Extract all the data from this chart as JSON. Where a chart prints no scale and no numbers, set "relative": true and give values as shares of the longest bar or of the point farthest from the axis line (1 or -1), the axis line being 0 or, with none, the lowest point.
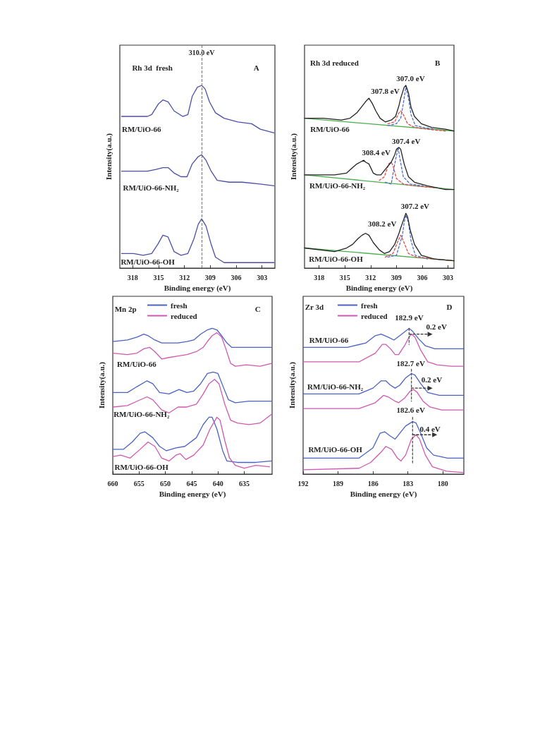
{
  "chart_data": [
    {
      "type": "line",
      "relative": true,
      "tick_labels": "x",
      "xlabel": "Binding energy (eV)",
      "ylabel": "Intensity(a.u.)",
      "xlim": [
        319.5,
        301.5
      ],
      "xticks": [
        318,
        315,
        312,
        309,
        306,
        303
      ],
      "series": [
        {
          "color": "#4b4fa6",
          "x": [
            319.3,
            317.6,
            316.3,
            315.8,
            315.0,
            314.5,
            313.9,
            313.2,
            312.2,
            311.6,
            311.1,
            310.5,
            310.0,
            309.6,
            309.1,
            308.4,
            307.4,
            305.8,
            304.2,
            303.2,
            301.6
          ],
          "values": [
            0.83,
            0.83,
            0.83,
            0.84,
            0.9,
            0.92,
            0.91,
            0.86,
            0.83,
            0.84,
            0.94,
            0.99,
            1,
            0.98,
            0.91,
            0.85,
            0.82,
            0.8,
            0.79,
            0.76,
            0.74
          ]
        },
        {
          "color": "#4b4fa6",
          "x": [
            319.3,
            316.3,
            315.3,
            314.5,
            313.9,
            313.2,
            312.4,
            311.7,
            311.1,
            310.4,
            310.0,
            309.5,
            308.9,
            308.2,
            306.8,
            305.3,
            303.2,
            301.6
          ],
          "values": [
            0.53,
            0.53,
            0.54,
            0.55,
            0.55,
            0.52,
            0.5,
            0.5,
            0.57,
            0.61,
            0.62,
            0.59,
            0.53,
            0.48,
            0.47,
            0.47,
            0.46,
            0.45
          ]
        },
        {
          "color": "#4b4fa6",
          "x": [
            319.3,
            317.9,
            316.8,
            315.8,
            315.1,
            314.5,
            313.9,
            313.2,
            312.4,
            311.6,
            310.9,
            310.4,
            310.0,
            309.5,
            308.9,
            308.4,
            307.4,
            305.3,
            303.2,
            301.6
          ],
          "values": [
            0.08,
            0.08,
            0.07,
            0.08,
            0.13,
            0.18,
            0.17,
            0.09,
            0.07,
            0.08,
            0.16,
            0.24,
            0.27,
            0.23,
            0.13,
            0.06,
            0.03,
            0.03,
            0.03,
            0.03
          ]
        }
      ],
      "ref_lines": [
        {
          "axis": "x",
          "value": 310.0,
          "label": "310.0 eV",
          "color": "#777777",
          "line_style": "dashed"
        }
      ],
      "annotations": [
        "Rh 3d  fresh",
        "A",
        "RM/UiO-66",
        "RM/UiO-66-NH₂",
        "RM/UiO-66-OH"
      ]
    },
    {
      "type": "line",
      "relative": true,
      "tick_labels": "x",
      "xlabel": "Binding energy (eV)",
      "ylabel": "Intensity(a.u.)",
      "xlim": [
        319.7,
        302.3
      ],
      "xticks": [
        318,
        315,
        312,
        309,
        306,
        303
      ],
      "series": [
        {
          "color": "#4caf50",
          "x": [
            319.7,
            302.3
          ],
          "values": [
            0.82,
            0.75
          ]
        },
        {
          "color": "#4a6fd0",
          "line_style": "dashed",
          "x": [
            310.0,
            309.0,
            308.5,
            308.2,
            307.9,
            307.6,
            307.3,
            306.8,
            305.9,
            304.6
          ],
          "values": [
            0.78,
            0.79,
            0.82,
            0.9,
            0.99,
            0.93,
            0.84,
            0.78,
            0.77,
            0.76
          ]
        },
        {
          "color": "#e04848",
          "line_style": "dashed",
          "x": [
            310.0,
            309.2,
            308.7,
            308.5,
            308.2,
            307.7,
            306.9,
            305.4,
            303.3
          ],
          "values": [
            0.79,
            0.8,
            0.85,
            0.86,
            0.84,
            0.79,
            0.77,
            0.76,
            0.75
          ]
        },
        {
          "color": "#222222",
          "x": [
            319.7,
            317.5,
            315.4,
            314.4,
            313.6,
            313.1,
            312.6,
            312.2,
            311.8,
            311.4,
            310.9,
            310.3,
            309.6,
            309.1,
            308.7,
            308.5,
            308.1,
            307.9,
            307.6,
            307.3,
            306.9,
            306.1,
            304.9,
            303.3,
            302.3
          ],
          "values": [
            0.82,
            0.82,
            0.81,
            0.82,
            0.85,
            0.88,
            0.91,
            0.93,
            0.9,
            0.86,
            0.82,
            0.8,
            0.81,
            0.83,
            0.89,
            0.93,
            0.99,
            1,
            0.96,
            0.88,
            0.83,
            0.79,
            0.77,
            0.76,
            0.75
          ]
        },
        {
          "color": "#4caf50",
          "x": [
            319.7,
            302.3
          ],
          "values": [
            0.51,
            0.43
          ]
        },
        {
          "color": "#4a6fd0",
          "line_style": "dashed",
          "x": [
            310.3,
            309.6,
            309.2,
            308.8,
            308.6,
            308.2,
            307.4,
            305.9
          ],
          "values": [
            0.47,
            0.46,
            0.57,
            0.66,
            0.6,
            0.5,
            0.46,
            0.45
          ]
        },
        {
          "color": "#e04848",
          "line_style": "dashed",
          "x": [
            311.0,
            310.4,
            309.9,
            309.6,
            309.4,
            309.0,
            308.2,
            306.9,
            304.6
          ],
          "values": [
            0.48,
            0.5,
            0.57,
            0.58,
            0.56,
            0.49,
            0.46,
            0.45,
            0.44
          ]
        },
        {
          "color": "#222222",
          "x": [
            319.7,
            316.2,
            314.8,
            314.1,
            313.6,
            313.2,
            312.8,
            312.6,
            312.2,
            311.7,
            311.3,
            310.8,
            310.3,
            309.6,
            309.2,
            309.0,
            308.7,
            308.5,
            308.1,
            307.6,
            306.9,
            305.4,
            303.3,
            302.3
          ],
          "values": [
            0.51,
            0.51,
            0.52,
            0.55,
            0.57,
            0.58,
            0.59,
            0.58,
            0.57,
            0.52,
            0.51,
            0.51,
            0.54,
            0.58,
            0.62,
            0.65,
            0.66,
            0.65,
            0.57,
            0.5,
            0.47,
            0.45,
            0.43,
            0.43
          ]
        },
        {
          "color": "#4caf50",
          "x": [
            319.7,
            302.3
          ],
          "values": [
            0.11,
            0.04
          ]
        },
        {
          "color": "#4a6fd0",
          "line_style": "dashed",
          "x": [
            310.0,
            309.0,
            308.3,
            308.1,
            307.9,
            307.6,
            307.3,
            306.8,
            305.4
          ],
          "values": [
            0.06,
            0.07,
            0.18,
            0.25,
            0.29,
            0.25,
            0.15,
            0.07,
            0.05
          ]
        },
        {
          "color": "#e04848",
          "line_style": "dashed",
          "x": [
            310.3,
            309.4,
            308.8,
            308.5,
            308.2,
            307.6,
            306.7,
            304.6,
            302.3
          ],
          "values": [
            0.06,
            0.08,
            0.15,
            0.18,
            0.15,
            0.08,
            0.06,
            0.05,
            0.04
          ]
        },
        {
          "color": "#222222",
          "x": [
            319.7,
            316.2,
            314.8,
            314.1,
            313.5,
            313.0,
            312.6,
            312.2,
            311.7,
            311.0,
            310.4,
            309.8,
            309.2,
            308.7,
            308.5,
            308.2,
            307.9,
            307.7,
            307.4,
            306.9,
            306.1,
            304.6,
            302.3
          ],
          "values": [
            0.11,
            0.09,
            0.11,
            0.13,
            0.16,
            0.18,
            0.19,
            0.18,
            0.14,
            0.1,
            0.08,
            0.09,
            0.13,
            0.19,
            0.22,
            0.26,
            0.3,
            0.28,
            0.21,
            0.13,
            0.07,
            0.05,
            0.04
          ]
        }
      ],
      "annotations": [
        "Rh 3d reduced",
        "B",
        "307.0 eV",
        "307.8 eV",
        "RM/UiO-66",
        "307.4 eV",
        "308.4 eV",
        "RM/UiO-66-NH₂",
        "307.2 eV",
        "308.2 eV",
        "RM/UiO-66-OH"
      ]
    },
    {
      "type": "line",
      "relative": true,
      "tick_labels": "x",
      "xlabel": "Binding energy (eV)",
      "ylabel": "Intensity(a.u.)",
      "xlim": [
        660,
        629.7
      ],
      "xticks": [
        660,
        655,
        650,
        645,
        640,
        635
      ],
      "legend": "top left",
      "series": [
        {
          "name": "fresh",
          "color": "#4a62c6",
          "x": [
            660,
            657.2,
            655.4,
            654.1,
            653.3,
            652.0,
            650.7,
            649.3,
            647.6,
            645.9,
            644.6,
            643.3,
            642.0,
            641.1,
            640.2,
            639.3,
            638.3,
            637.4,
            635.4,
            632.8,
            629.8
          ],
          "values": [
            0.91,
            0.92,
            0.94,
            0.96,
            0.95,
            0.92,
            0.9,
            0.9,
            0.9,
            0.91,
            0.92,
            0.96,
            0.99,
            1,
            0.99,
            0.95,
            0.9,
            0.87,
            0.87,
            0.87,
            0.87
          ]
        },
        {
          "name": "reduced",
          "color": "#d058b0",
          "x": [
            660,
            657.2,
            655.4,
            654.1,
            653.0,
            652.0,
            650.7,
            649.3,
            647.6,
            645.9,
            644.1,
            642.8,
            642.0,
            641.1,
            640.2,
            639.3,
            638.5,
            637.6,
            636.7,
            634.6,
            632.0,
            629.8
          ],
          "values": [
            0.83,
            0.82,
            0.83,
            0.86,
            0.87,
            0.84,
            0.79,
            0.8,
            0.81,
            0.82,
            0.84,
            0.87,
            0.91,
            0.95,
            0.97,
            0.94,
            0.86,
            0.76,
            0.74,
            0.75,
            0.74,
            0.76
          ]
        },
        {
          "color": "#4a62c6",
          "x": [
            660,
            657.2,
            655.4,
            653.5,
            652.4,
            651.1,
            649.3,
            647.4,
            645.9,
            644.6,
            643.3,
            642.0,
            640.9,
            640.0,
            638.9,
            638.0,
            636.7,
            634.1,
            632.0,
            629.8
          ],
          "values": [
            0.56,
            0.56,
            0.6,
            0.64,
            0.62,
            0.56,
            0.55,
            0.58,
            0.56,
            0.57,
            0.62,
            0.69,
            0.7,
            0.69,
            0.59,
            0.51,
            0.49,
            0.5,
            0.5,
            0.5
          ]
        },
        {
          "color": "#d058b0",
          "x": [
            660,
            657.2,
            655.4,
            653.5,
            652.4,
            650.7,
            649.3,
            647.6,
            645.9,
            644.1,
            642.8,
            641.7,
            640.65,
            639.8,
            638.7,
            637.6,
            636.3,
            634.1,
            632.0,
            629.8
          ],
          "values": [
            0.46,
            0.47,
            0.5,
            0.53,
            0.51,
            0.44,
            0.42,
            0.46,
            0.46,
            0.48,
            0.55,
            0.62,
            0.65,
            0.62,
            0.48,
            0.37,
            0.35,
            0.34,
            0.35,
            0.41
          ]
        },
        {
          "color": "#4a62c6",
          "x": [
            660,
            658.0,
            656.3,
            654.8,
            653.9,
            652.4,
            651.1,
            649.8,
            648.0,
            646.3,
            644.1,
            642.8,
            641.7,
            641.1,
            640.2,
            639.1,
            638.3,
            636.3,
            632.8,
            629.8
          ],
          "values": [
            0.17,
            0.17,
            0.22,
            0.28,
            0.29,
            0.25,
            0.19,
            0.16,
            0.18,
            0.19,
            0.25,
            0.34,
            0.39,
            0.39,
            0.31,
            0.16,
            0.09,
            0.08,
            0.08,
            0.09
          ]
        },
        {
          "color": "#d058b0",
          "x": [
            660,
            658.5,
            656.7,
            654.8,
            653.3,
            652.0,
            650.7,
            649.3,
            648.0,
            647.2,
            646.1,
            644.6,
            642.8,
            641.5,
            640.2,
            639.6,
            638.7,
            637.8,
            636.7,
            635.0,
            632.8,
            630.2
          ],
          "values": [
            0.12,
            0.13,
            0.11,
            0.17,
            0.22,
            0.19,
            0.11,
            0.09,
            0.13,
            0.14,
            0.1,
            0.13,
            0.2,
            0.31,
            0.39,
            0.37,
            0.23,
            0.11,
            0.06,
            0.04,
            0.06,
            0.05
          ]
        }
      ],
      "annotations": [
        "Mn 2p",
        "C",
        "RM/UiO-66",
        "RM/UiO-66-NH₂",
        "RM/UiO-66-OH"
      ]
    },
    {
      "type": "line",
      "relative": true,
      "tick_labels": "x",
      "xlabel": "Binding energy (eV)",
      "ylabel": "Intensity(a.u.)",
      "xlim": [
        192,
        178.2
      ],
      "xticks": [
        192,
        189,
        186,
        183,
        180
      ],
      "legend": "top left",
      "series": [
        {
          "name": "fresh",
          "color": "#4a62c6",
          "x": [
            192,
            188.2,
            186.6,
            185.8,
            185.3,
            184.7,
            184.2,
            183.7,
            182.9,
            182.6,
            182.1,
            181.5,
            180.7,
            179.3,
            178.2
          ],
          "values": [
            0.87,
            0.87,
            0.9,
            0.95,
            0.96,
            0.94,
            0.92,
            0.95,
            1,
            0.98,
            0.93,
            0.88,
            0.86,
            0.86,
            0.86
          ]
        },
        {
          "name": "reduced",
          "color": "#d058b0",
          "x": [
            192,
            187.2,
            185.8,
            185.2,
            184.9,
            184.5,
            184.1,
            183.8,
            183.3,
            182.9,
            182.7,
            182.4,
            181.9,
            181.3,
            180.5,
            179.3,
            178.2
          ],
          "values": [
            0.77,
            0.77,
            0.83,
            0.89,
            0.89,
            0.86,
            0.82,
            0.82,
            0.88,
            0.94,
            0.96,
            0.94,
            0.85,
            0.77,
            0.75,
            0.74,
            0.74
          ]
        },
        {
          "color": "#4a62c6",
          "x": [
            192,
            187.2,
            186.0,
            185.3,
            184.9,
            184.5,
            184.1,
            183.7,
            183.2,
            182.7,
            182.4,
            181.9,
            181.3,
            180.3,
            178.2
          ],
          "values": [
            0.55,
            0.55,
            0.59,
            0.64,
            0.64,
            0.61,
            0.59,
            0.61,
            0.66,
            0.69,
            0.68,
            0.62,
            0.56,
            0.54,
            0.54
          ]
        },
        {
          "color": "#d058b0",
          "x": [
            192,
            187.2,
            185.8,
            185.1,
            184.7,
            184.1,
            183.8,
            183.3,
            182.8,
            182.5,
            182.2,
            181.7,
            181.1,
            180.1,
            178.2
          ],
          "values": [
            0.45,
            0.45,
            0.49,
            0.54,
            0.53,
            0.5,
            0.49,
            0.52,
            0.57,
            0.58,
            0.56,
            0.5,
            0.46,
            0.44,
            0.44
          ]
        },
        {
          "color": "#4a62c6",
          "x": [
            192,
            187.2,
            186.0,
            185.4,
            185.0,
            184.5,
            184.1,
            183.7,
            183.2,
            182.6,
            182.3,
            181.9,
            181.4,
            180.8,
            179.6,
            178.2
          ],
          "values": [
            0.11,
            0.11,
            0.18,
            0.28,
            0.29,
            0.26,
            0.24,
            0.28,
            0.33,
            0.36,
            0.35,
            0.28,
            0.18,
            0.13,
            0.11,
            0.11
          ]
        },
        {
          "color": "#d058b0",
          "x": [
            192,
            187.2,
            186.2,
            185.2,
            184.9,
            184.4,
            183.9,
            183.6,
            183.2,
            182.7,
            182.3,
            182.0,
            181.5,
            180.9,
            179.7,
            178.2
          ],
          "values": [
            0.03,
            0.04,
            0.08,
            0.16,
            0.19,
            0.17,
            0.11,
            0.09,
            0.13,
            0.24,
            0.27,
            0.24,
            0.13,
            0.05,
            0.02,
            0.01
          ]
        },
        {
          "color": "#555555",
          "line_style": "dashed",
          "x": [
            182.9,
            182.9
          ],
          "values": [
            1.0,
            0.89
          ]
        },
        {
          "color": "#555555",
          "line_style": "dashed",
          "x": [
            182.7,
            182.7
          ],
          "values": [
            0.72,
            0.5
          ]
        },
        {
          "color": "#555555",
          "line_style": "dashed",
          "x": [
            182.6,
            182.6
          ],
          "values": [
            0.39,
            0.07
          ]
        },
        {
          "color": "#333333",
          "line_style": "dashed",
          "marker": "triangle",
          "x": [
            182.9,
            181.1
          ],
          "values": [
            0.96,
            0.96
          ]
        },
        {
          "color": "#333333",
          "line_style": "dashed",
          "marker": "triangle",
          "x": [
            182.7,
            181.1
          ],
          "values": [
            0.59,
            0.59
          ]
        },
        {
          "color": "#333333",
          "line_style": "dashed",
          "marker": "triangle",
          "x": [
            182.6,
            180.7
          ],
          "values": [
            0.27,
            0.27
          ]
        }
      ],
      "annotations": [
        "Zr 3d",
        "D",
        "182.9 eV",
        "0.2 eV",
        "RM/UiO-66",
        "182.7 eV",
        "0.2 eV",
        "RM/UiO-66-NH₂",
        "182.6 eV",
        "0.4 eV",
        "RM/UiO-66-OH"
      ]
    }
  ]
}
